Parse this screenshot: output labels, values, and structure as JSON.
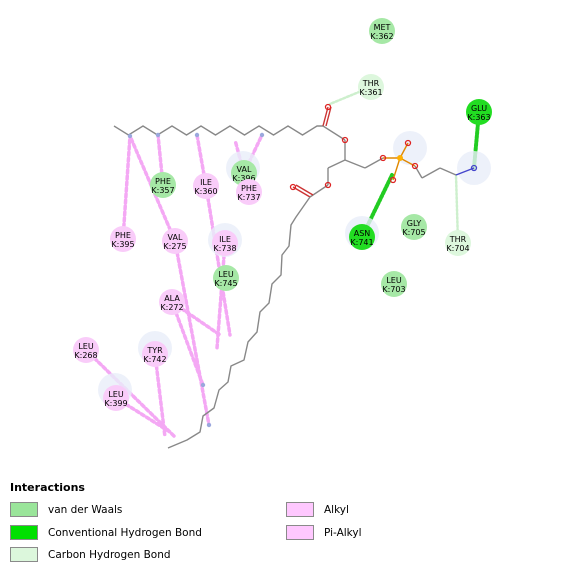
{
  "legend": {
    "title": "Interactions",
    "items": [
      {
        "label": "van der Waals",
        "color": "#9AE59A"
      },
      {
        "label": "Conventional Hydrogen Bond",
        "color": "#00E000"
      },
      {
        "label": "Carbon Hydrogen Bond",
        "color": "#DCF7DC"
      },
      {
        "label": "Alkyl",
        "color": "#FFC8FF"
      },
      {
        "label": "Pi-Alkyl",
        "color": "#FFC8FF"
      }
    ]
  },
  "residues": [
    {
      "name": "MET",
      "id": "K:362",
      "type": "vdw"
    },
    {
      "name": "THR",
      "id": "K:361",
      "type": "carbon_h"
    },
    {
      "name": "GLU",
      "id": "K:363",
      "type": "hbond"
    },
    {
      "name": "PHE",
      "id": "K:357",
      "type": "vdw"
    },
    {
      "name": "ILE",
      "id": "K:360",
      "type": "alkyl"
    },
    {
      "name": "VAL",
      "id": "K:396",
      "type": "vdw"
    },
    {
      "name": "PHE",
      "id": "K:737",
      "type": "pi_alkyl"
    },
    {
      "name": "PHE",
      "id": "K:395",
      "type": "pi_alkyl"
    },
    {
      "name": "VAL",
      "id": "K:275",
      "type": "alkyl"
    },
    {
      "name": "ILE",
      "id": "K:738",
      "type": "alkyl"
    },
    {
      "name": "ASN",
      "id": "K:741",
      "type": "hbond"
    },
    {
      "name": "GLY",
      "id": "K:705",
      "type": "vdw"
    },
    {
      "name": "THR",
      "id": "K:704",
      "type": "carbon_h"
    },
    {
      "name": "LEU",
      "id": "K:745",
      "type": "vdw"
    },
    {
      "name": "LEU",
      "id": "K:703",
      "type": "vdw"
    },
    {
      "name": "ALA",
      "id": "K:272",
      "type": "alkyl"
    },
    {
      "name": "LEU",
      "id": "K:268",
      "type": "alkyl"
    },
    {
      "name": "TYR",
      "id": "K:742",
      "type": "pi_alkyl"
    },
    {
      "name": "LEU",
      "id": "K:399",
      "type": "alkyl"
    }
  ]
}
